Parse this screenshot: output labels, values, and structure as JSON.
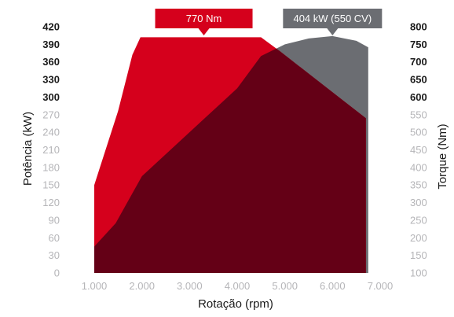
{
  "chart_data": {
    "type": "area",
    "xlabel": "Rotação (rpm)",
    "ylabel_left": "Potência (kW)",
    "ylabel_right": "Torque (Nm)",
    "x_ticks": [
      "1.000",
      "2.000",
      "3.000",
      "4.000",
      "5.000",
      "6.000",
      "7.000"
    ],
    "y_left_ticks": [
      "0",
      "30",
      "60",
      "90",
      "120",
      "150",
      "180",
      "210",
      "240",
      "270",
      "300",
      "330",
      "360",
      "390",
      "420"
    ],
    "y_right_ticks": [
      "100",
      "150",
      "200",
      "250",
      "300",
      "350",
      "400",
      "450",
      "500",
      "550",
      "600",
      "650",
      "700",
      "750",
      "800"
    ],
    "x_range": [
      1000,
      7000
    ],
    "y_left_range": [
      0,
      420
    ],
    "y_right_range": [
      100,
      800
    ],
    "series": [
      {
        "name": "Torque",
        "axis": "right",
        "color": "#d5001c",
        "x": [
          1000,
          1500,
          1800,
          1970,
          4500,
          4900,
          6700
        ],
        "y": [
          350,
          560,
          720,
          770,
          770,
          730,
          540
        ]
      },
      {
        "name": "Potência",
        "axis": "left",
        "color": "#6b6d72",
        "x": [
          1000,
          1450,
          2000,
          3000,
          4000,
          4500,
          5000,
          5500,
          6000,
          6500,
          6750
        ],
        "y": [
          45,
          85,
          165,
          240,
          315,
          370,
          390,
          400,
          404,
          396,
          385
        ]
      }
    ],
    "overlap_color": "#640016",
    "annotations": [
      {
        "label": "770 Nm",
        "color": "#d5001c"
      },
      {
        "label": "404 kW (550 CV)",
        "color": "#6b6d72"
      }
    ]
  }
}
